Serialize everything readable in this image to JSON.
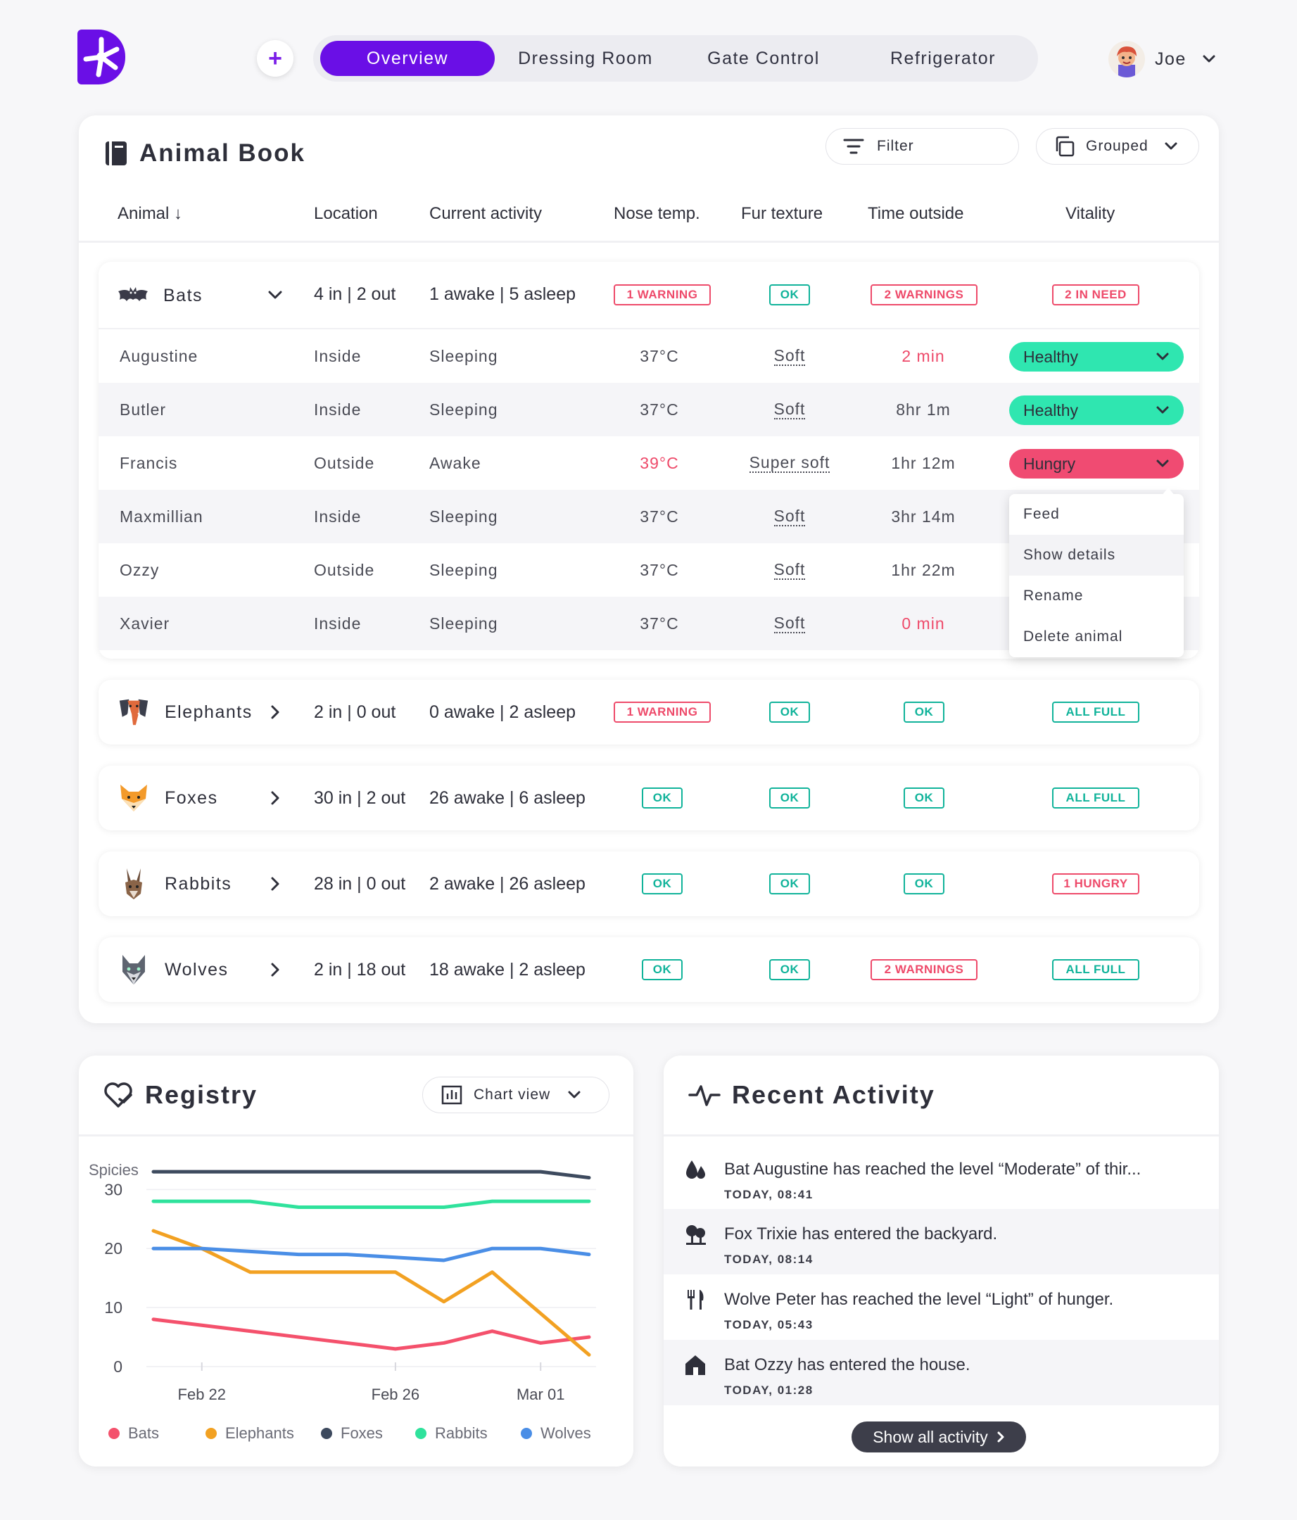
{
  "colors": {
    "brand": "#6a0fe6",
    "ok": "#10b39a",
    "warn": "#ee4a6a",
    "healthy": "#2fe6b0",
    "hungry": "#f04b72",
    "bats": "#f4516c",
    "elephants": "#f2a122",
    "foxes": "#3d4a5e",
    "rabbits": "#2fe29c",
    "wolves": "#4a8ee6"
  },
  "header": {
    "add_label": "+",
    "tabs": [
      {
        "label": "Overview",
        "active": true
      },
      {
        "label": "Dressing Room"
      },
      {
        "label": "Gate Control"
      },
      {
        "label": "Refrigerator"
      }
    ],
    "user_name": "Joe"
  },
  "animal_book": {
    "title": "Animal Book",
    "filter_label": "Filter",
    "group_label": "Grouped",
    "columns": [
      "Animal ↓",
      "Location",
      "Current activity",
      "Nose temp.",
      "Fur texture",
      "Time outside",
      "Vitality"
    ],
    "groups": [
      {
        "name": "Bats",
        "icon": "bat-icon",
        "location": "4 in | 2 out",
        "activity": "1 awake | 5 asleep",
        "nose": "1 WARNING",
        "fur": "OK",
        "time": "2 WARNINGS",
        "vitality": "2 IN NEED",
        "expanded": true
      },
      {
        "name": "Elephants",
        "icon": "elephant-icon",
        "location": "2 in | 0 out",
        "activity": "0 awake | 2 asleep",
        "nose": "1 WARNING",
        "fur": "OK",
        "time": "OK",
        "vitality": "ALL FULL"
      },
      {
        "name": "Foxes",
        "icon": "fox-icon",
        "location": "30 in | 2 out",
        "activity": "26 awake | 6 asleep",
        "nose": "OK",
        "fur": "OK",
        "time": "OK",
        "vitality": "ALL FULL"
      },
      {
        "name": "Rabbits",
        "icon": "rabbit-icon",
        "location": "28 in | 0 out",
        "activity": "2 awake | 26 asleep",
        "nose": "OK",
        "fur": "OK",
        "time": "OK",
        "vitality": "1 HUNGRY"
      },
      {
        "name": "Wolves",
        "icon": "wolf-icon",
        "location": "2 in | 18 out",
        "activity": "18 awake | 2 asleep",
        "nose": "OK",
        "fur": "OK",
        "time": "2 WARNINGS",
        "vitality": "ALL FULL"
      }
    ],
    "bat_rows": [
      {
        "name": "Augustine",
        "location": "Inside",
        "activity": "Sleeping",
        "temp": "37°C",
        "fur": "Soft",
        "time": "2 min",
        "vitality": "Healthy"
      },
      {
        "name": "Butler",
        "location": "Inside",
        "activity": "Sleeping",
        "temp": "37°C",
        "fur": "Soft",
        "time": "8hr 1m",
        "vitality": "Healthy"
      },
      {
        "name": "Francis",
        "location": "Outside",
        "activity": "Awake",
        "temp": "39°C",
        "fur": "Super soft",
        "time": "1hr 12m",
        "vitality": "Hungry"
      },
      {
        "name": "Maxmillian",
        "location": "Inside",
        "activity": "Sleeping",
        "temp": "37°C",
        "fur": "Soft",
        "time": "3hr 14m"
      },
      {
        "name": "Ozzy",
        "location": "Outside",
        "activity": "Sleeping",
        "temp": "37°C",
        "fur": "Soft",
        "time": "1hr 22m"
      },
      {
        "name": "Xavier",
        "location": "Inside",
        "activity": "Sleeping",
        "temp": "37°C",
        "fur": "Soft",
        "time": "0 min"
      }
    ],
    "menu": [
      "Feed",
      "Show details",
      "Rename",
      "Delete animal"
    ]
  },
  "registry": {
    "title": "Registry",
    "view_label": "Chart view"
  },
  "chart_data": {
    "type": "line",
    "ylabel": "Spicies",
    "x": [
      "Feb 21",
      "Feb 22",
      "Feb 23",
      "Feb 24",
      "Feb 25",
      "Feb 26",
      "Feb 27",
      "Feb 28",
      "Mar 01",
      "Mar 02"
    ],
    "xticks": [
      "Feb 22",
      "Feb 26",
      "Mar 01"
    ],
    "yticks": [
      0,
      10,
      20,
      30
    ],
    "ylim": [
      0,
      36
    ],
    "grid": true,
    "legend_position": "bottom",
    "series": [
      {
        "name": "Bats",
        "color": "#f4516c",
        "values": [
          8,
          7,
          6,
          5,
          4,
          3,
          4,
          6,
          4,
          5
        ]
      },
      {
        "name": "Elephants",
        "color": "#f2a122",
        "values": [
          23,
          20,
          16,
          16,
          16,
          16,
          11,
          16,
          9,
          2
        ]
      },
      {
        "name": "Foxes",
        "color": "#3d4a5e",
        "values": [
          33,
          33,
          33,
          33,
          33,
          33,
          33,
          33,
          33,
          32
        ]
      },
      {
        "name": "Rabbits",
        "color": "#2fe29c",
        "values": [
          28,
          28,
          28,
          27,
          27,
          27,
          27,
          28,
          28,
          28
        ]
      },
      {
        "name": "Wolves",
        "color": "#4a8ee6",
        "values": [
          20,
          20,
          19.5,
          19,
          19,
          18.5,
          18,
          20,
          20,
          19
        ]
      }
    ]
  },
  "recent_activity": {
    "title": "Recent Activity",
    "items": [
      {
        "icon": "water-drops-icon",
        "text": "Bat Augustine has reached the level “Moderate” of thir...",
        "time": "TODAY, 08:41"
      },
      {
        "icon": "trees-icon",
        "text": "Fox Trixie has entered the backyard.",
        "time": "TODAY, 08:14"
      },
      {
        "icon": "fork-knife-icon",
        "text": "Wolve Peter has reached the level “Light” of hunger.",
        "time": "TODAY, 05:43"
      },
      {
        "icon": "house-icon",
        "text": "Bat Ozzy has entered the house.",
        "time": "TODAY, 01:28"
      }
    ],
    "show_all_label": "Show all activity"
  }
}
